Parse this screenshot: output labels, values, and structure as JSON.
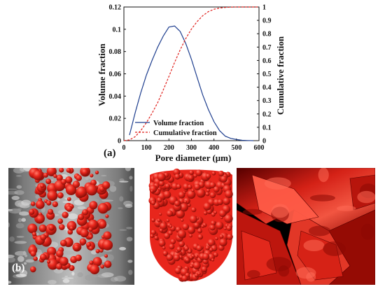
{
  "panel_a_label": "(a)",
  "panel_b_label": "(b)",
  "colors": {
    "volume_line": "#1f3f8f",
    "cumulative_line": "#e0201c",
    "pore_red": "#e8261c",
    "ct_background": "#6a6a6a"
  },
  "chart_data": {
    "type": "line",
    "title": "",
    "xlabel": "Pore diameter (μm)",
    "ylabel": "Volume fraction",
    "y2label": "Cumulative fraction",
    "xlim": [
      0,
      600
    ],
    "ylim": [
      0,
      0.12
    ],
    "y2lim": [
      0,
      1
    ],
    "xticks": [
      "0",
      "100",
      "200",
      "300",
      "400",
      "500",
      "600"
    ],
    "yticks": [
      "0",
      "0.02",
      "0.04",
      "0.06",
      "0.08",
      "0.1",
      "0.12"
    ],
    "y2ticks": [
      "0",
      "0.1",
      "0.2",
      "0.3",
      "0.4",
      "0.5",
      "0.6",
      "0.7",
      "0.8",
      "0.9",
      "1"
    ],
    "legend_position": "bottom-center",
    "grid": false,
    "series": [
      {
        "name": "Volume fraction",
        "axis": "left",
        "style": "solid",
        "x": [
          25,
          50,
          75,
          100,
          125,
          150,
          175,
          200,
          225,
          250,
          275,
          300,
          325,
          350,
          375,
          400,
          425,
          450,
          475,
          500,
          525,
          550,
          575
        ],
        "y": [
          0.005,
          0.025,
          0.043,
          0.059,
          0.072,
          0.084,
          0.094,
          0.102,
          0.103,
          0.098,
          0.087,
          0.073,
          0.057,
          0.041,
          0.028,
          0.017,
          0.009,
          0.004,
          0.002,
          0.001,
          0.0003,
          0.0001,
          0
        ]
      },
      {
        "name": "Cumulative fraction",
        "axis": "right",
        "style": "dashed",
        "x": [
          0,
          25,
          50,
          75,
          100,
          125,
          150,
          175,
          200,
          225,
          250,
          275,
          300,
          325,
          350,
          375,
          400,
          425,
          450,
          475,
          500,
          525,
          550,
          575,
          600
        ],
        "y": [
          0,
          0.005,
          0.03,
          0.075,
          0.135,
          0.205,
          0.285,
          0.38,
          0.48,
          0.585,
          0.68,
          0.765,
          0.835,
          0.89,
          0.935,
          0.965,
          0.983,
          0.992,
          0.997,
          0.999,
          1.0,
          1.0,
          1.0,
          1.0,
          1.0
        ]
      }
    ]
  }
}
